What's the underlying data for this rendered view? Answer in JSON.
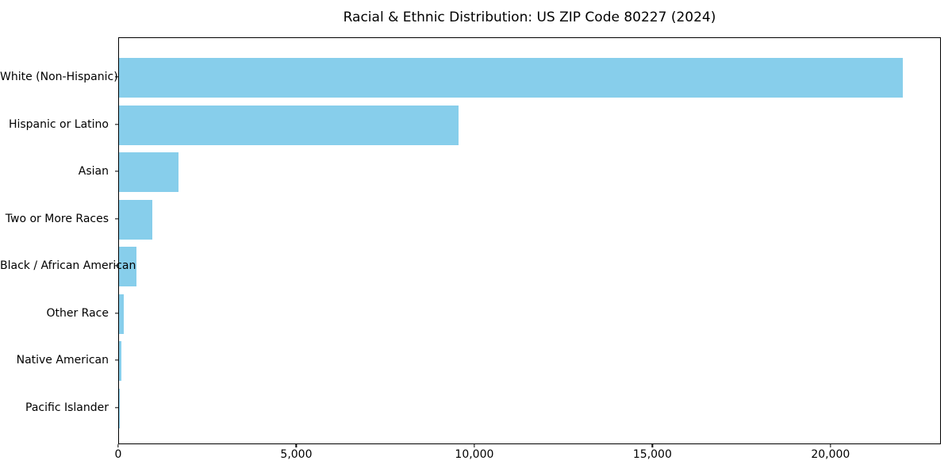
{
  "chart_data": {
    "type": "bar",
    "orientation": "horizontal",
    "title": "Racial & Ethnic Distribution: US ZIP Code 80227 (2024)",
    "categories": [
      "White (Non-Hispanic)",
      "Hispanic or Latino",
      "Asian",
      "Two or More Races",
      "Black / African American",
      "Other Race",
      "Native American",
      "Pacific Islander"
    ],
    "values": [
      22000,
      9530,
      1680,
      930,
      480,
      130,
      75,
      10
    ],
    "xlabel": "",
    "ylabel": "",
    "xlim": [
      0,
      23100
    ],
    "x_ticks": [
      0,
      5000,
      10000,
      15000,
      20000
    ],
    "x_tick_labels": [
      "0",
      "5,000",
      "10,000",
      "15,000",
      "20,000"
    ],
    "grid": false,
    "legend": null,
    "bar_color": "#87CEEB",
    "background_color": "#ffffff",
    "axis_color": "#000000",
    "text_color": "#000000"
  }
}
